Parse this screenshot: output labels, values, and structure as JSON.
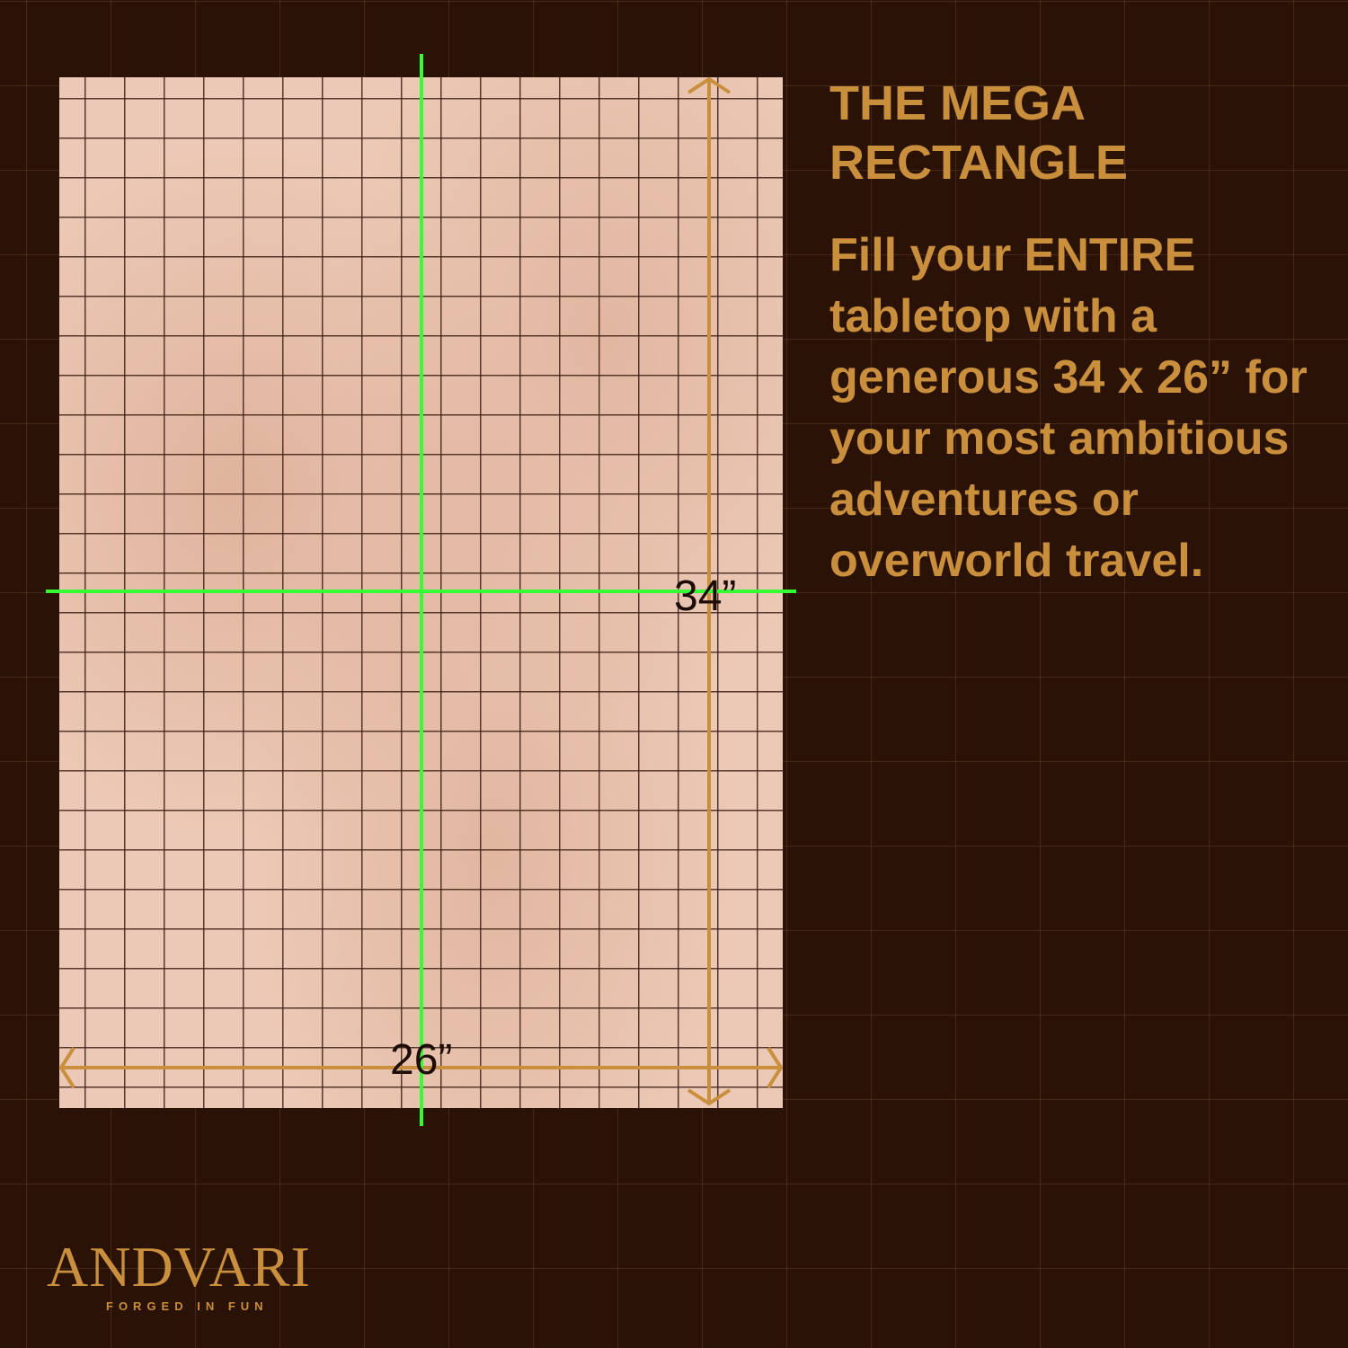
{
  "product": {
    "title": "THE MEGA RECTANGLE",
    "description": "Fill your ENTIRE tabletop with a generous 34 x 26” for your most ambitious adventures or overworld travel.",
    "height_label": "34”",
    "width_label": "26”"
  },
  "brand": {
    "name": "ANDVARI",
    "tagline": "FORGED IN FUN"
  },
  "colors": {
    "background": "#2a1207",
    "accent": "#c98f3d",
    "mat": "#ecc9b6",
    "fold_lines": "#33ff33"
  }
}
